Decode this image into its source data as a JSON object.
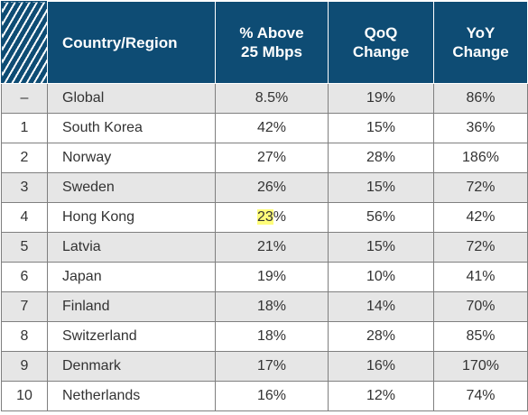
{
  "header": {
    "country": "Country/Region",
    "pct_line1": "% Above",
    "pct_line2": "25 Mbps",
    "qoq_line1": "QoQ",
    "qoq_line2": "Change",
    "yoy_line1": "YoY",
    "yoy_line2": "Change"
  },
  "rows": [
    {
      "rank": "–",
      "country": "Global",
      "pct_hl": "",
      "pct": "8.5%",
      "qoq": "19%",
      "yoy": "86%"
    },
    {
      "rank": "1",
      "country": "South Korea",
      "pct_hl": "",
      "pct": "42%",
      "qoq": "15%",
      "yoy": "36%"
    },
    {
      "rank": "2",
      "country": "Norway",
      "pct_hl": "",
      "pct": "27%",
      "qoq": "28%",
      "yoy": "186%"
    },
    {
      "rank": "3",
      "country": "Sweden",
      "pct_hl": "",
      "pct": "26%",
      "qoq": "15%",
      "yoy": "72%"
    },
    {
      "rank": "4",
      "country": "Hong Kong",
      "pct_hl": "23",
      "pct": "%",
      "qoq": "56%",
      "yoy": "42%"
    },
    {
      "rank": "5",
      "country": "Latvia",
      "pct_hl": "",
      "pct": "21%",
      "qoq": "15%",
      "yoy": "72%"
    },
    {
      "rank": "6",
      "country": "Japan",
      "pct_hl": "",
      "pct": "19%",
      "qoq": "10%",
      "yoy": "41%"
    },
    {
      "rank": "7",
      "country": "Finland",
      "pct_hl": "",
      "pct": "18%",
      "qoq": "14%",
      "yoy": "70%"
    },
    {
      "rank": "8",
      "country": "Switzerland",
      "pct_hl": "",
      "pct": "18%",
      "qoq": "28%",
      "yoy": "85%"
    },
    {
      "rank": "9",
      "country": "Denmark",
      "pct_hl": "",
      "pct": "17%",
      "qoq": "16%",
      "yoy": "170%"
    },
    {
      "rank": "10",
      "country": "Netherlands",
      "pct_hl": "",
      "pct": "16%",
      "qoq": "12%",
      "yoy": "74%"
    }
  ]
}
